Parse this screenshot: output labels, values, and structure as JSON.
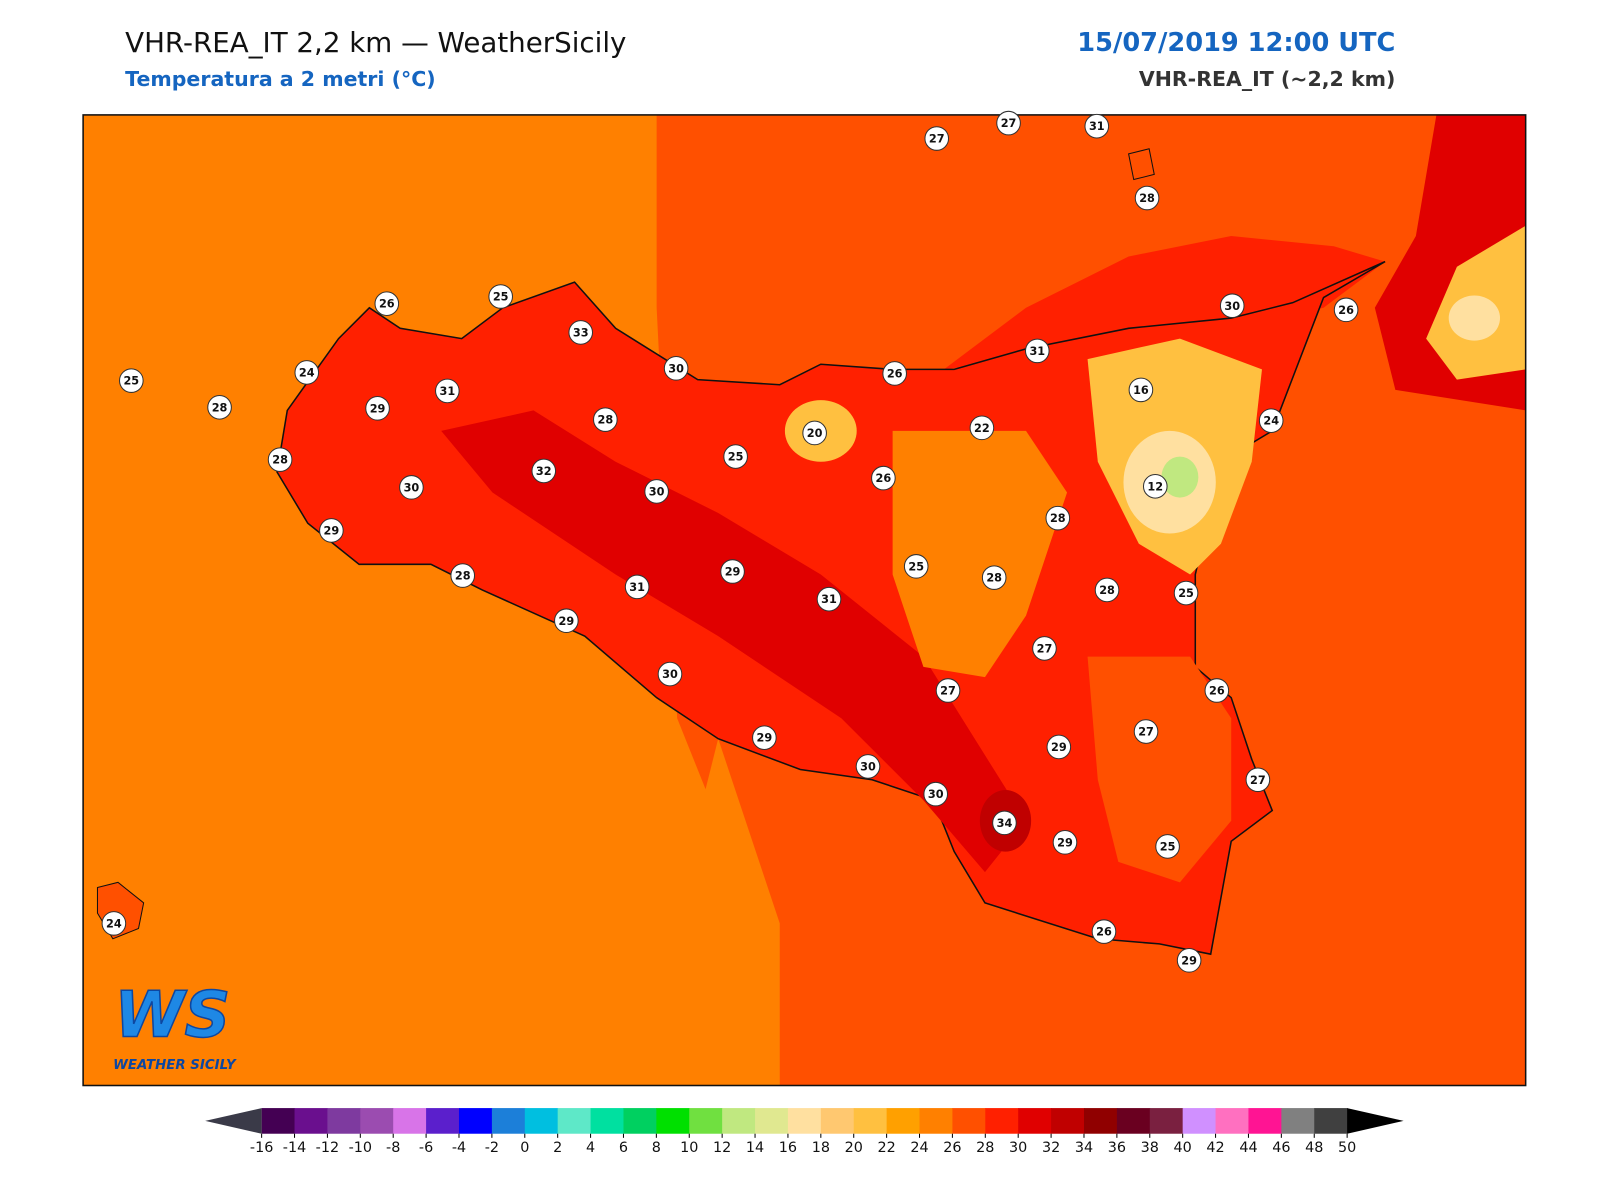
{
  "header": {
    "title": "VHR-REA_IT 2,2 km — WeatherSicily",
    "subtitle": "Temperatura a 2 metri (°C)",
    "datetime": "15/07/2019 12:00 UTC",
    "model": "VHR-REA_IT (~2,2 km)"
  },
  "logo": {
    "mark": "WS",
    "text": "WEATHER SICILY"
  },
  "stations": [
    27,
    27,
    31,
    28,
    26,
    25,
    33,
    30,
    30,
    26,
    31,
    26,
    16,
    25,
    24,
    28,
    31,
    29,
    28,
    22,
    20,
    24,
    28,
    25,
    32,
    26,
    12,
    30,
    30,
    28,
    29,
    25,
    29,
    28,
    28,
    31,
    31,
    28,
    25,
    29,
    27,
    30,
    27,
    26,
    29,
    27,
    29,
    30,
    27,
    30,
    34,
    29,
    25,
    24,
    26,
    29
  ],
  "colorbar": {
    "ticks": [
      -16,
      -14,
      -12,
      -10,
      -8,
      -6,
      -4,
      -2,
      0,
      2,
      4,
      6,
      8,
      10,
      12,
      14,
      16,
      18,
      20,
      22,
      24,
      26,
      28,
      30,
      32,
      34,
      36,
      38,
      40,
      42,
      44,
      46,
      48,
      50
    ],
    "colors": [
      "#440053",
      "#6a0f8e",
      "#7e3a9f",
      "#9b4cb0",
      "#d874e8",
      "#5b1fcc",
      "#0000ff",
      "#1c7fd9",
      "#00bfe0",
      "#5ee8c8",
      "#00e0a0",
      "#00d060",
      "#00e000",
      "#70e040",
      "#c0e880",
      "#e0e890",
      "#ffe0a0",
      "#ffc870",
      "#ffc040",
      "#ffa000",
      "#ff8000",
      "#ff5000",
      "#ff2000",
      "#e00000",
      "#c00000",
      "#900000",
      "#6a0020",
      "#7a2040",
      "#d090ff",
      "#ff70c0",
      "#ff1493",
      "#808080",
      "#404040"
    ],
    "under_color": "#3a3a48",
    "over_color": "#000000"
  }
}
